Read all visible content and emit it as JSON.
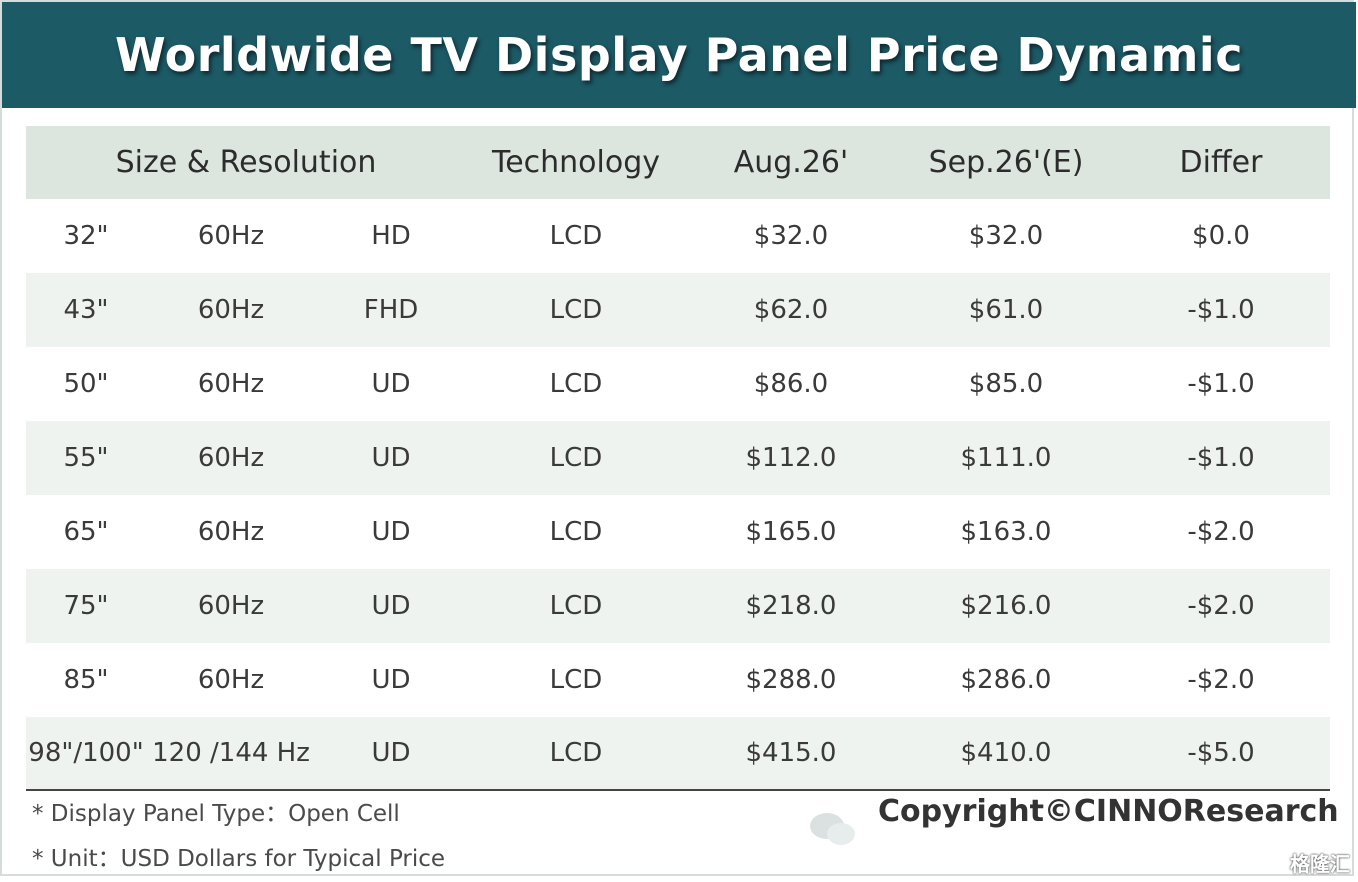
{
  "title": "Worldwide TV Display Panel Price Dynamic",
  "headers": {
    "size_resolution": "Size & Resolution",
    "technology": "Technology",
    "aug": "Aug.26'",
    "sep": "Sep.26'(E)",
    "differ": "Differ"
  },
  "rows": [
    {
      "size": "32\"",
      "hz": "60Hz",
      "res": "HD",
      "tech": "LCD",
      "aug": "$32.0",
      "sep": "$32.0",
      "diff": "$0.0"
    },
    {
      "size": "43\"",
      "hz": "60Hz",
      "res": "FHD",
      "tech": "LCD",
      "aug": "$62.0",
      "sep": "$61.0",
      "diff": "-$1.0"
    },
    {
      "size": "50\"",
      "hz": "60Hz",
      "res": "UD",
      "tech": "LCD",
      "aug": "$86.0",
      "sep": "$85.0",
      "diff": "-$1.0"
    },
    {
      "size": "55\"",
      "hz": "60Hz",
      "res": "UD",
      "tech": "LCD",
      "aug": "$112.0",
      "sep": "$111.0",
      "diff": "-$1.0"
    },
    {
      "size": "65\"",
      "hz": "60Hz",
      "res": "UD",
      "tech": "LCD",
      "aug": "$165.0",
      "sep": "$163.0",
      "diff": "-$2.0"
    },
    {
      "size": "75\"",
      "hz": "60Hz",
      "res": "UD",
      "tech": "LCD",
      "aug": "$218.0",
      "sep": "$216.0",
      "diff": "-$2.0"
    },
    {
      "size": "85\"",
      "hz": "60Hz",
      "res": "UD",
      "tech": "LCD",
      "aug": "$288.0",
      "sep": "$286.0",
      "diff": "-$2.0"
    },
    {
      "size": "98\"/100\"",
      "hz": "120 /144 Hz",
      "res": "UD",
      "tech": "LCD",
      "aug": "$415.0",
      "sep": "$410.0",
      "diff": "-$5.0"
    }
  ],
  "notes": {
    "panel_type": "* Display Panel Type：Open Cell",
    "unit": "* Unit：USD Dollars for Typical Price"
  },
  "copyright": "Copyright©CINNOResearch",
  "logo_text": "格隆汇",
  "colors": {
    "banner": "#1c5a66",
    "header_row": "#dde6de",
    "alt_row": "#eef3ef"
  }
}
